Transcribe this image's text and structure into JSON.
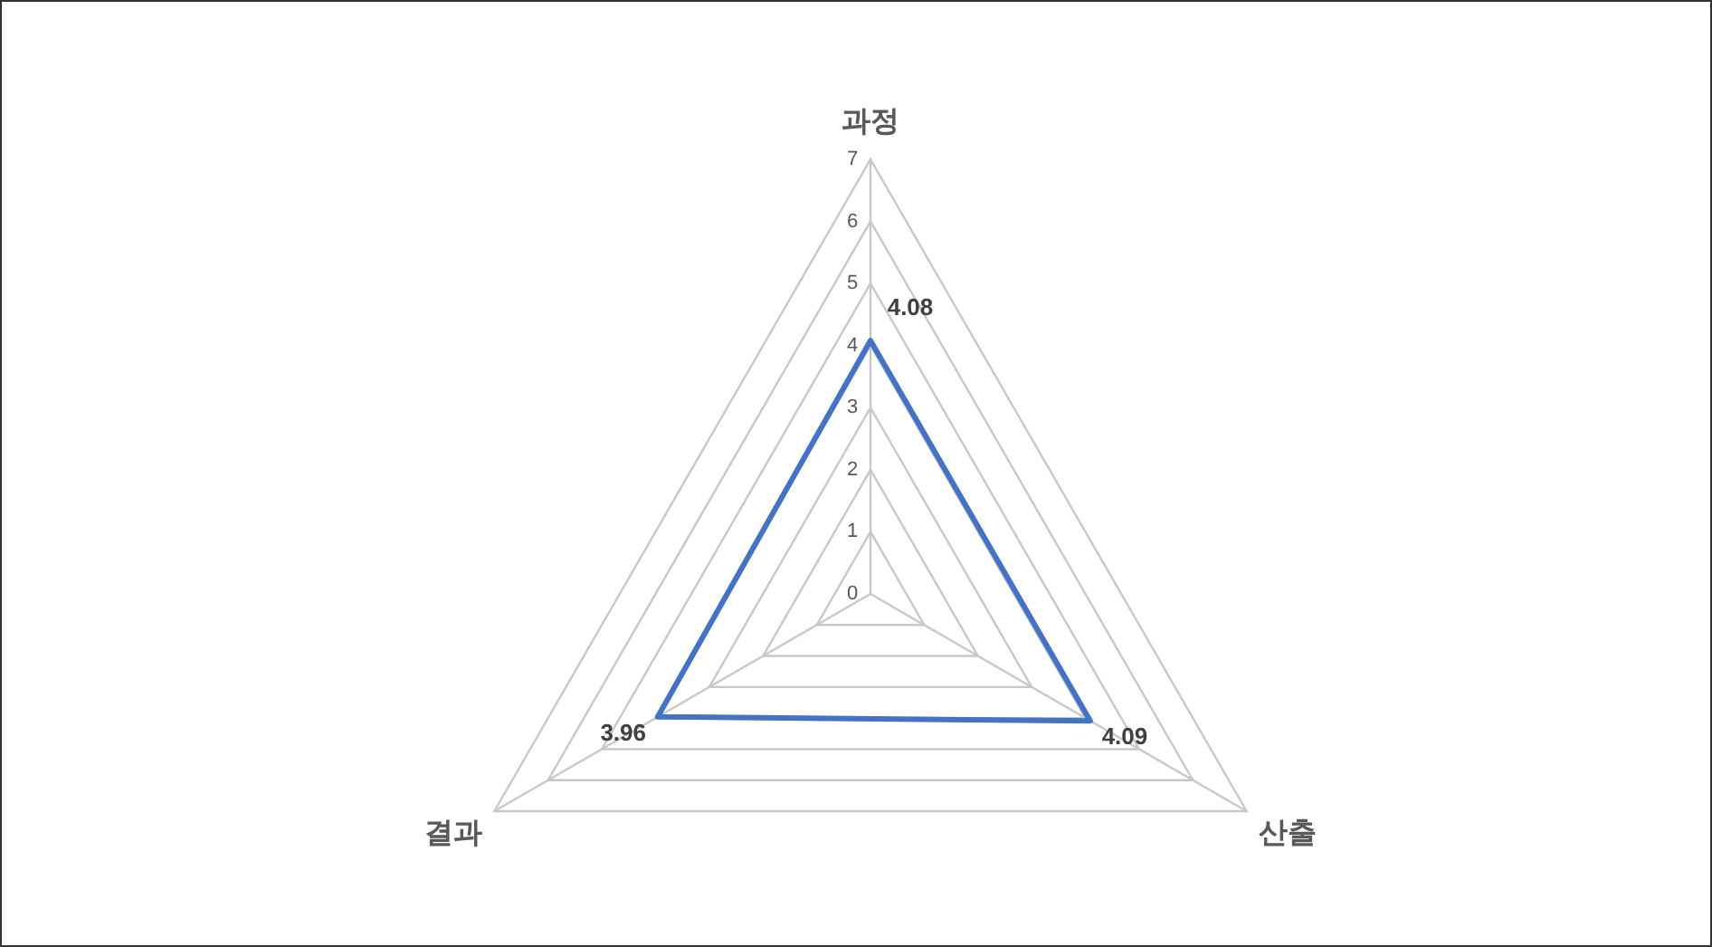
{
  "chart_data": {
    "type": "radar",
    "categories": [
      "과정",
      "산출",
      "결과"
    ],
    "series": [
      {
        "color": "#4472c4",
        "values": [
          4.08,
          4.09,
          3.96
        ]
      }
    ],
    "ylim": [
      0,
      7
    ],
    "yticks": [
      0,
      1,
      2,
      3,
      4,
      5,
      6,
      7
    ],
    "data_labels": true,
    "marker": "none",
    "line_style": "solid",
    "legend": false
  }
}
